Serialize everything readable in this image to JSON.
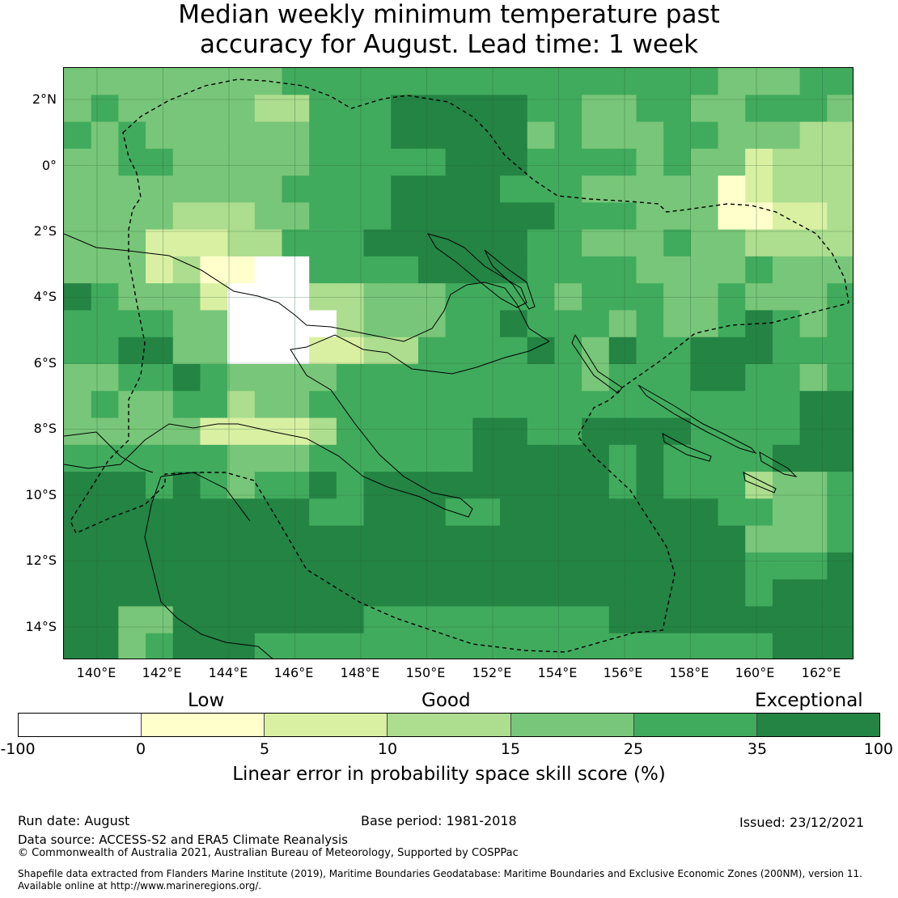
{
  "title": {
    "line1": "Median weekly minimum temperature past",
    "line2": "accuracy for August. Lead time: 1 week"
  },
  "map": {
    "lat_labels": [
      "2°N",
      "0°",
      "2°S",
      "4°S",
      "6°S",
      "8°S",
      "10°S",
      "12°S",
      "14°S"
    ],
    "lon_labels": [
      "140°E",
      "142°E",
      "144°E",
      "146°E",
      "148°E",
      "150°E",
      "152°E",
      "154°E",
      "156°E",
      "158°E",
      "160°E",
      "162°E"
    ],
    "colors": {
      "neg": "#ffffff",
      "c0_5": "#ffffcc",
      "c5_10": "#d9f0a3",
      "c10_15": "#addd8e",
      "c15_25": "#78c679",
      "c25_35": "#41ab5d",
      "c35_100": "#238443"
    }
  },
  "colorbar": {
    "categories": [
      "Low",
      "Good",
      "Exceptional"
    ],
    "ticks": [
      "-100",
      "0",
      "5",
      "10",
      "15",
      "25",
      "35",
      "100"
    ],
    "colors": [
      "#ffffff",
      "#ffffcc",
      "#d9f0a3",
      "#addd8e",
      "#78c679",
      "#41ab5d",
      "#238443"
    ],
    "label": "Linear error in probability space skill score (%)"
  },
  "footer": {
    "run_date": "Run date: August",
    "base_period": "Base period: 1981-2018",
    "issued": "Issued: 23/12/2021",
    "data_source": "Data source: ACCESS-S2 and ERA5 Climate Reanalysis",
    "copyright": "© Commonwealth of Australia 2021, Australian Bureau of Meteorology, Supported by COSPPac",
    "shapefile1": "Shapefile data extracted from Flanders Marine Institute (2019), Maritime Boundaries Geodatabase: Maritime Boundaries and Exclusive Economic Zones (200NM), version 11.",
    "shapefile2": "Available online at http://www.marineregions.org/."
  }
}
